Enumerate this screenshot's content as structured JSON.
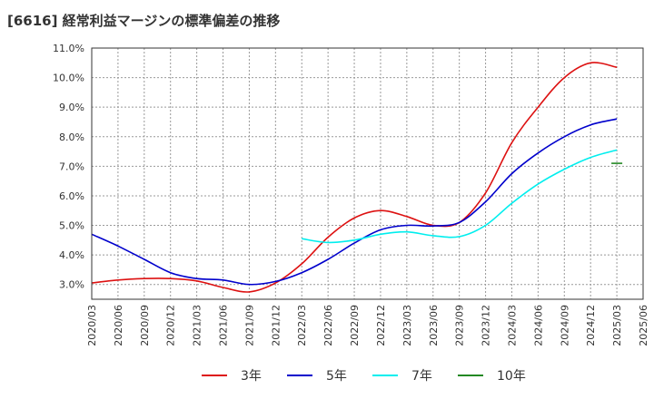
{
  "chart_data": {
    "type": "line",
    "title": "[6616]  経常利益マージンの標準偏差の推移",
    "xlabel": "",
    "ylabel": "",
    "ylim": [
      2.5,
      11.0
    ],
    "yticks": [
      3.0,
      4.0,
      5.0,
      6.0,
      7.0,
      8.0,
      9.0,
      10.0,
      11.0
    ],
    "ytick_labels": [
      "3.0%",
      "4.0%",
      "5.0%",
      "6.0%",
      "7.0%",
      "8.0%",
      "9.0%",
      "10.0%",
      "11.0%"
    ],
    "x_ticks": [
      "2020/03",
      "2020/06",
      "2020/09",
      "2020/12",
      "2021/03",
      "2021/06",
      "2021/09",
      "2021/12",
      "2022/03",
      "2022/06",
      "2022/09",
      "2022/12",
      "2023/03",
      "2023/06",
      "2023/09",
      "2023/12",
      "2024/03",
      "2024/06",
      "2024/09",
      "2024/12",
      "2025/03",
      "2025/06"
    ],
    "grid": true,
    "legend_position": "bottom",
    "series": [
      {
        "name": "3年",
        "color": "#dd1111",
        "values": [
          3.05,
          3.15,
          3.2,
          3.2,
          3.12,
          2.9,
          2.75,
          3.05,
          3.7,
          4.6,
          5.25,
          5.5,
          5.3,
          5.0,
          5.1,
          6.1,
          7.8,
          9.0,
          10.0,
          10.5,
          10.35
        ]
      },
      {
        "name": "5年",
        "color": "#0000cc",
        "values": [
          4.7,
          4.3,
          3.85,
          3.4,
          3.2,
          3.15,
          3.0,
          3.1,
          3.4,
          3.85,
          4.4,
          4.85,
          5.0,
          4.98,
          5.1,
          5.8,
          6.75,
          7.45,
          8.0,
          8.4,
          8.6
        ]
      },
      {
        "name": "7年",
        "color": "#00eeee",
        "values": [
          null,
          null,
          null,
          null,
          null,
          null,
          null,
          null,
          4.55,
          4.42,
          4.5,
          4.7,
          4.78,
          4.65,
          4.62,
          5.0,
          5.75,
          6.4,
          6.9,
          7.3,
          7.55
        ]
      },
      {
        "name": "10年",
        "color": "#228822",
        "values": [
          null,
          null,
          null,
          null,
          null,
          null,
          null,
          null,
          null,
          null,
          null,
          null,
          null,
          null,
          null,
          null,
          null,
          null,
          null,
          null,
          7.1
        ]
      }
    ]
  }
}
